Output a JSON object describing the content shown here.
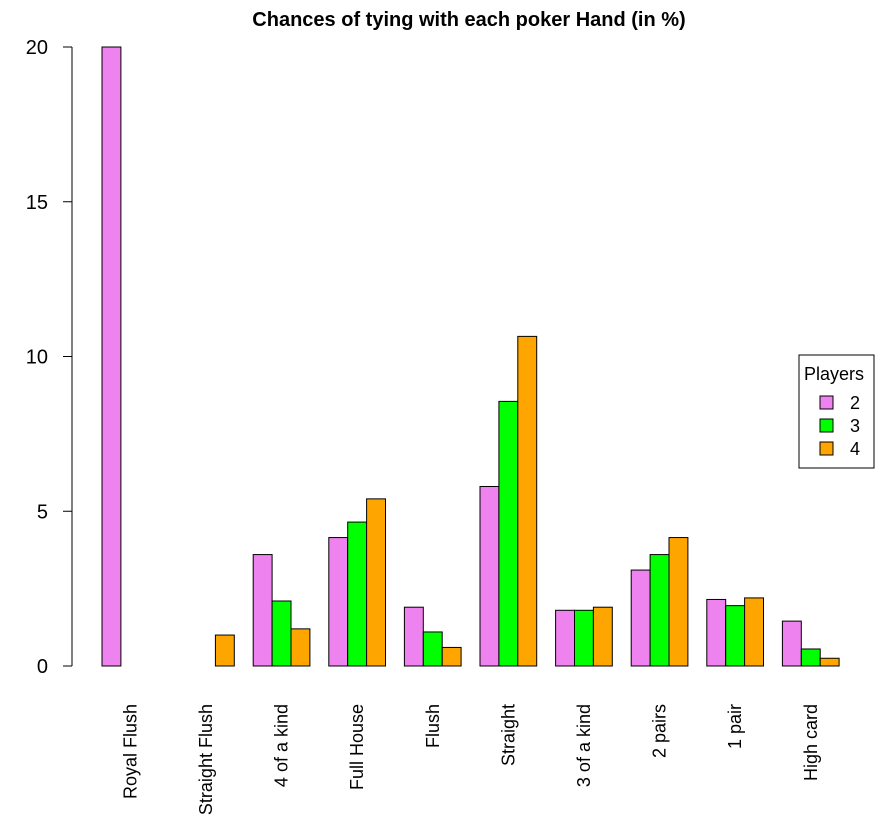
{
  "chart_data": {
    "type": "bar",
    "title": "Chances of tying with each poker Hand (in %)",
    "xlabel": "",
    "ylabel": "",
    "ylim": [
      0,
      20
    ],
    "yticks": [
      "0",
      "5",
      "10",
      "15",
      "20"
    ],
    "grid": false,
    "legend_position": "right",
    "legend_title": "Players",
    "categories": [
      "Royal Flush",
      "Straight Flush",
      "4 of a kind",
      "Full House",
      "Flush",
      "Straight",
      "3 of a kind",
      "2 pairs",
      "1 pair",
      "High card"
    ],
    "series": [
      {
        "name": "2",
        "color": "#ee82ee",
        "values": [
          20.0,
          0.0,
          3.6,
          4.15,
          1.9,
          5.8,
          1.8,
          3.1,
          2.15,
          1.45
        ]
      },
      {
        "name": "3",
        "color": "#00ff00",
        "values": [
          0.0,
          0.0,
          2.1,
          4.65,
          1.1,
          8.55,
          1.8,
          3.6,
          1.95,
          0.55
        ]
      },
      {
        "name": "4",
        "color": "#ffa500",
        "values": [
          0.0,
          1.0,
          1.2,
          5.4,
          0.6,
          10.65,
          1.9,
          4.15,
          2.2,
          0.25
        ]
      }
    ]
  }
}
